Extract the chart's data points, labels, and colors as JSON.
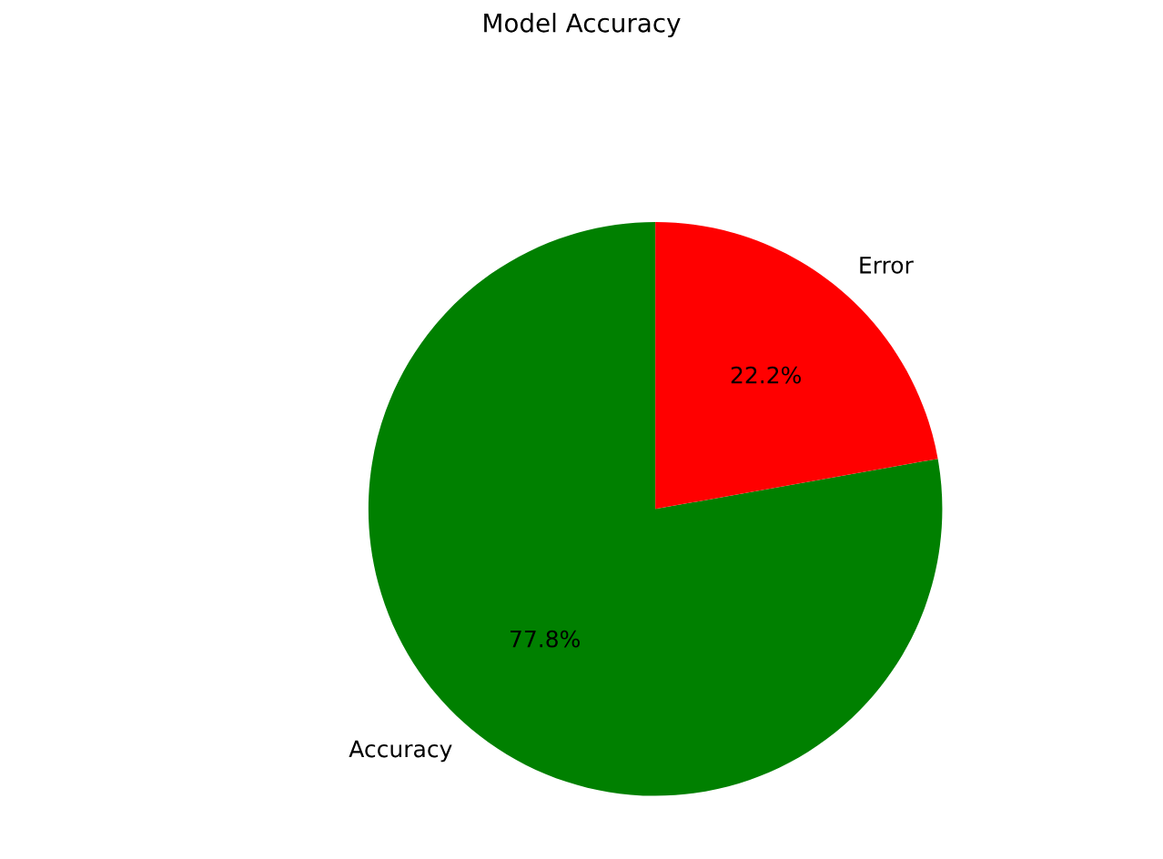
{
  "chart_data": {
    "type": "pie",
    "title": "Model Accuracy",
    "categories": [
      "Accuracy",
      "Error"
    ],
    "values": [
      77.8,
      22.2
    ],
    "colors": [
      "#008000",
      "#ff0000"
    ],
    "value_labels": [
      "77.8%",
      "22.2%"
    ],
    "legend": false
  }
}
